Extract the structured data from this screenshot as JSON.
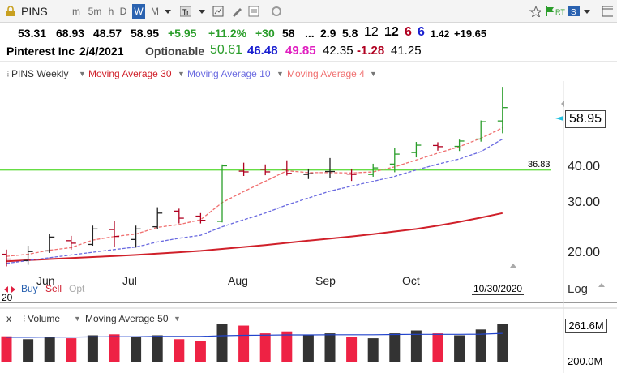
{
  "toolbar": {
    "symbol": "PINS",
    "timeframes": [
      "m",
      "5m",
      "h",
      "D",
      "W",
      "M"
    ],
    "active_timeframe": "W"
  },
  "quote_line1": {
    "open": "53.31",
    "high": "68.93",
    "low": "48.57",
    "close": "58.95",
    "change": "+5.95",
    "change_pct": "+11.2%",
    "v1": "+30",
    "v2": "58",
    "dots": "...",
    "v3": "2.9",
    "v4": "5.8",
    "v5": "12",
    "v6": "12",
    "v7": "6",
    "v8": "6",
    "v9": "1.42",
    "v10": "+19.65"
  },
  "quote_line2": {
    "name": "Pinterest Inc",
    "date": "2/4/2021",
    "optionable": "Optionable",
    "v1": "50.61",
    "v2": "46.48",
    "v3": "49.85",
    "v4": "42.35",
    "v5": "-1.28",
    "v6": "41.25"
  },
  "legend": {
    "series": "PINS Weekly",
    "ma30": "Moving Average 30",
    "ma10": "Moving Average 10",
    "ma4": "Moving Average 4"
  },
  "axis": {
    "price_ticks": [
      "40.00",
      "30.00",
      "20.00"
    ],
    "current_price": "58.95",
    "line_level": "36.83",
    "scale": "Log",
    "months": [
      "Jun",
      "Jul",
      "Aug",
      "Sep",
      "Oct"
    ],
    "cursor_date": "10/30/2020",
    "left_cut_label": "20"
  },
  "trade": {
    "buy": "Buy",
    "sell": "Sell",
    "opt": "Opt"
  },
  "volume": {
    "close_x": "x",
    "label": "Volume",
    "ma": "Moving Average 50",
    "last": "261.6M",
    "tick": "200.0M"
  },
  "colors": {
    "up": "#2a9d2a",
    "down": "#b00020",
    "ma30": "#d0202a",
    "ma10": "#6a6ae0",
    "ma4": "#f07070",
    "level_line": "#66dd44",
    "vol_up": "#333333",
    "vol_down": "#ee2244"
  },
  "chart_data": {
    "type": "line",
    "scale": "log",
    "ylim": [
      17,
      72
    ],
    "candles": [
      {
        "o": 19.5,
        "h": 20.2,
        "l": 17.8,
        "c": 18.8
      },
      {
        "o": 18.6,
        "h": 20.8,
        "l": 18.0,
        "c": 19.9
      },
      {
        "o": 20.0,
        "h": 22.8,
        "l": 19.7,
        "c": 22.2
      },
      {
        "o": 21.6,
        "h": 22.4,
        "l": 20.2,
        "c": 21.2
      },
      {
        "o": 21.0,
        "h": 24.2,
        "l": 20.8,
        "c": 23.6
      },
      {
        "o": 23.5,
        "h": 25.0,
        "l": 20.6,
        "c": 22.3
      },
      {
        "o": 21.8,
        "h": 24.2,
        "l": 20.5,
        "c": 23.6
      },
      {
        "o": 24.0,
        "h": 27.8,
        "l": 23.6,
        "c": 26.6
      },
      {
        "o": 27.0,
        "h": 27.5,
        "l": 24.6,
        "c": 25.6
      },
      {
        "o": 26.0,
        "h": 26.6,
        "l": 24.6,
        "c": 25.2
      },
      {
        "o": 25.0,
        "h": 38.4,
        "l": 24.8,
        "c": 38.0
      },
      {
        "o": 36.5,
        "h": 38.9,
        "l": 35.2,
        "c": 36.3
      },
      {
        "o": 37.0,
        "h": 38.4,
        "l": 35.4,
        "c": 36.3
      },
      {
        "o": 37.0,
        "h": 39.6,
        "l": 35.3,
        "c": 35.9
      },
      {
        "o": 35.6,
        "h": 37.2,
        "l": 34.4,
        "c": 35.8
      },
      {
        "o": 36.4,
        "h": 40.3,
        "l": 34.6,
        "c": 36.4
      },
      {
        "o": 35.7,
        "h": 37.2,
        "l": 33.9,
        "c": 35.6
      },
      {
        "o": 35.6,
        "h": 38.6,
        "l": 35.0,
        "c": 37.4
      },
      {
        "o": 38.5,
        "h": 43.5,
        "l": 36.2,
        "c": 41.5
      },
      {
        "o": 42.0,
        "h": 45.5,
        "l": 40.5,
        "c": 44.4
      },
      {
        "o": 44.3,
        "h": 45.4,
        "l": 42.6,
        "c": 43.9
      },
      {
        "o": 44.0,
        "h": 46.3,
        "l": 42.5,
        "c": 45.8
      },
      {
        "o": 46.5,
        "h": 53.5,
        "l": 45.6,
        "c": 53.0
      },
      {
        "o": 53.31,
        "h": 68.93,
        "l": 48.57,
        "c": 58.95
      }
    ],
    "ma4": [
      19.2,
      19.5,
      20.1,
      20.5,
      21.7,
      22.3,
      22.7,
      23.9,
      24.4,
      25.3,
      28.8,
      31.3,
      33.8,
      36.6,
      36.1,
      36.1,
      36.0,
      36.3,
      37.7,
      39.7,
      41.8,
      43.9,
      46.8,
      50.6
    ],
    "ma10": [
      18.2,
      18.6,
      19.0,
      19.4,
      19.8,
      20.2,
      20.6,
      21.4,
      22.0,
      22.5,
      24.0,
      25.3,
      26.6,
      28.3,
      29.8,
      31.4,
      32.6,
      33.8,
      35.1,
      36.8,
      38.5,
      40.0,
      42.3,
      46.5
    ],
    "ma30": [
      18.5,
      18.65,
      18.8,
      18.95,
      19.1,
      19.25,
      19.4,
      19.6,
      19.8,
      20.0,
      20.3,
      20.6,
      20.9,
      21.25,
      21.6,
      21.95,
      22.3,
      22.7,
      23.15,
      23.6,
      24.2,
      24.9,
      25.7,
      26.6
    ],
    "level": 36.83,
    "volume": [
      135,
      120,
      130,
      125,
      140,
      145,
      130,
      140,
      120,
      110,
      230,
      190,
      150,
      160,
      140,
      150,
      130,
      125,
      150,
      165,
      150,
      140,
      170,
      261.6
    ],
    "volume_ma50": [
      130,
      130,
      131,
      131,
      132,
      133,
      133,
      134,
      134,
      134,
      138,
      140,
      141,
      142,
      142,
      143,
      143,
      143,
      144,
      145,
      145,
      145,
      146,
      150
    ],
    "volume_ylim": [
      0,
      280
    ]
  }
}
